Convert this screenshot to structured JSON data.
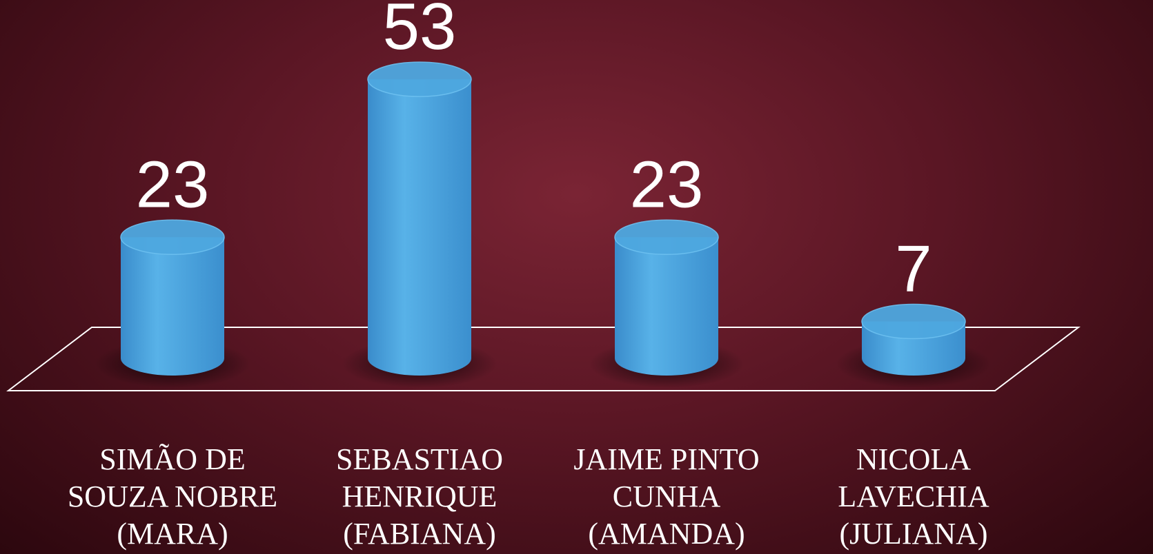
{
  "chart_data": {
    "type": "bar3d",
    "categories": [
      "SIMÃO DE SOUZA NOBRE (MARA)",
      "SEBASTIAO HENRIQUE (FABIANA)",
      "JAIME PINTO CUNHA (AMANDA)",
      "NICOLA LAVECHIA (JULIANA)"
    ],
    "values": [
      23,
      53,
      23,
      7
    ],
    "color": "#4ea8e0"
  }
}
